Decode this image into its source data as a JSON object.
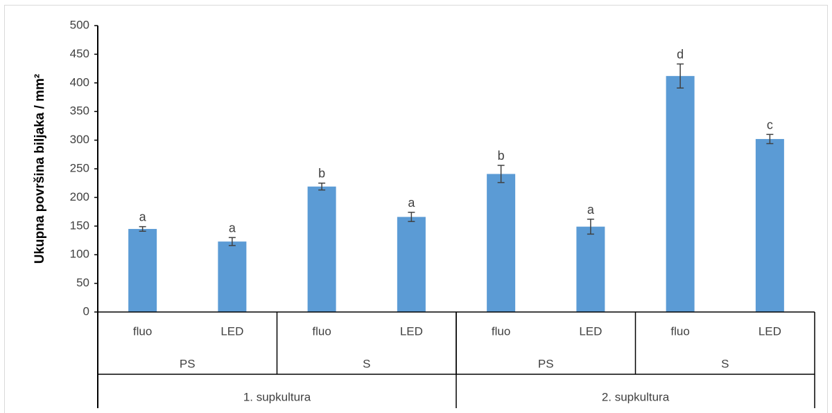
{
  "chart_data": {
    "type": "bar",
    "ylabel": "Ukupna površina biljaka / mm²",
    "xlabel": "",
    "ylim": [
      0,
      500
    ],
    "yticks": [
      0,
      50,
      100,
      150,
      200,
      250,
      300,
      350,
      400,
      450,
      500
    ],
    "grid": false,
    "categories": [
      "fluo",
      "LED",
      "fluo",
      "LED",
      "fluo",
      "LED",
      "fluo",
      "LED"
    ],
    "groups_level2": [
      "PS",
      "S",
      "PS",
      "S"
    ],
    "groups_level1": [
      "1. supkultura",
      "2. supkultura"
    ],
    "values": [
      145,
      123,
      219,
      166,
      241,
      149,
      412,
      302
    ],
    "errors": [
      4,
      7,
      6,
      8,
      15,
      13,
      21,
      8
    ],
    "significance": [
      "a",
      "a",
      "b",
      "a",
      "b",
      "a",
      "d",
      "c"
    ],
    "bar_color": "#5b9bd5"
  }
}
